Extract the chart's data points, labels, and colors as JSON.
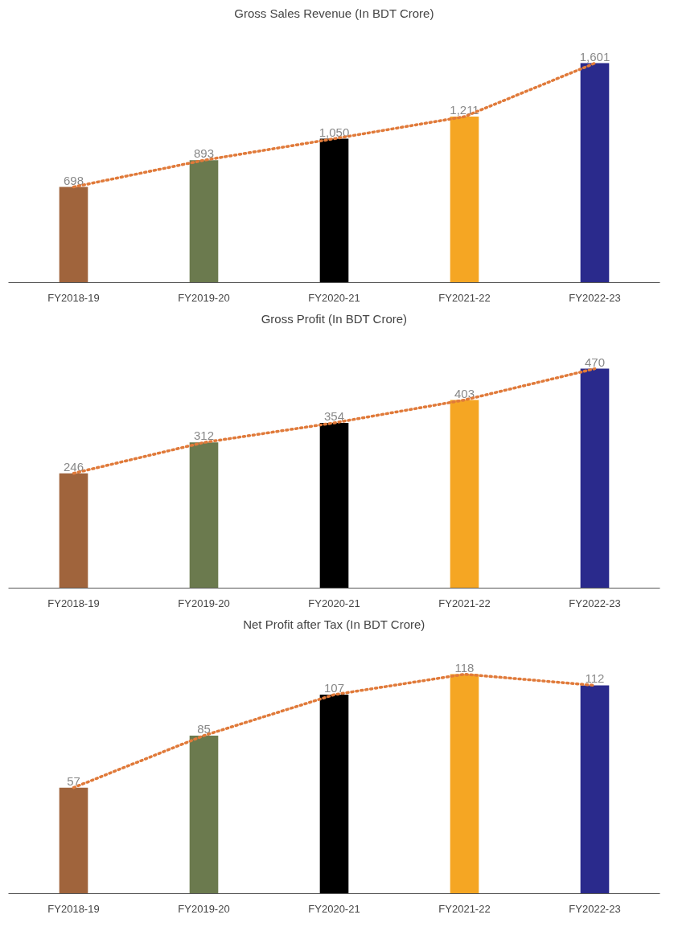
{
  "chart_data": [
    {
      "type": "bar",
      "title": "Gross Sales Revenue (In BDT Crore)",
      "categories": [
        "FY2018-19",
        "FY2019-20",
        "FY2020-21",
        "FY2021-22",
        "FY2022-23"
      ],
      "series": [
        {
          "colors": [
            "#a0643c",
            "#6b7a4e",
            "#000000",
            "#f5a623",
            "#2a2a8c"
          ],
          "values": [
            698,
            893,
            1050,
            1211,
            1601
          ],
          "value_labels": [
            "698",
            "893",
            "1,050",
            "1,211",
            "1,601"
          ]
        },
        {
          "type": "line",
          "color": "#e07a3a",
          "line_style": "dotted",
          "values": [
            698,
            893,
            1050,
            1211,
            1601
          ]
        }
      ]
    },
    {
      "type": "bar",
      "title": "Gross Profit (In BDT Crore)",
      "categories": [
        "FY2018-19",
        "FY2019-20",
        "FY2020-21",
        "FY2021-22",
        "FY2022-23"
      ],
      "series": [
        {
          "colors": [
            "#a0643c",
            "#6b7a4e",
            "#000000",
            "#f5a623",
            "#2a2a8c"
          ],
          "values": [
            246,
            312,
            354,
            403,
            470
          ],
          "value_labels": [
            "246",
            "312",
            "354",
            "403",
            "470"
          ]
        },
        {
          "type": "line",
          "color": "#e07a3a",
          "line_style": "dotted",
          "values": [
            246,
            312,
            354,
            403,
            470
          ]
        }
      ]
    },
    {
      "type": "bar",
      "title": "Net Profit after Tax (In BDT Crore)",
      "categories": [
        "FY2018-19",
        "FY2019-20",
        "FY2020-21",
        "FY2021-22",
        "FY2022-23"
      ],
      "series": [
        {
          "colors": [
            "#a0643c",
            "#6b7a4e",
            "#000000",
            "#f5a623",
            "#2a2a8c"
          ],
          "values": [
            57,
            85,
            107,
            118,
            112
          ],
          "value_labels": [
            "57",
            "85",
            "107",
            "118",
            "112"
          ]
        },
        {
          "type": "line",
          "color": "#e07a3a",
          "line_style": "dotted",
          "values": [
            57,
            85,
            107,
            118,
            112
          ]
        }
      ]
    }
  ]
}
